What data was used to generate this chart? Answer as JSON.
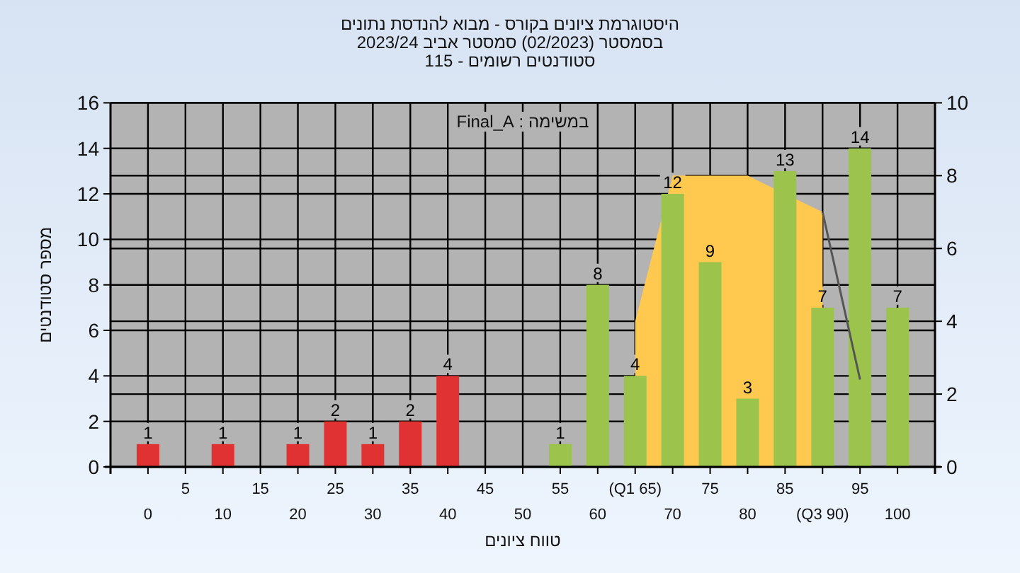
{
  "chart_data": {
    "type": "bar",
    "title": "היסטוגרמת ציונים בקורס - מבוא להנדסת נתונים",
    "subtitle": "בסמסטר  (02/2023)  סמסטר אביב 2023/24",
    "annotations": [
      "סטודנטים רשומים - 115",
      "במשימה : Final_A"
    ],
    "xlabel": "טווח ציונים",
    "ylabel": "מספר סטודנטים",
    "categories": [
      "0",
      "5",
      "10",
      "15",
      "20",
      "25",
      "30",
      "35",
      "40",
      "45",
      "50",
      "55",
      "60",
      "(Q1 65)",
      "70",
      "75",
      "80",
      "85",
      "(Q3 90)",
      "95",
      "100"
    ],
    "series": [
      {
        "type": "area",
        "axis": "y2",
        "color": "#ffc94f",
        "values": [
          null,
          null,
          null,
          null,
          null,
          null,
          null,
          null,
          null,
          null,
          null,
          null,
          null,
          4,
          8,
          8,
          8,
          null,
          7,
          null,
          null
        ]
      },
      {
        "colors": [
          "#e03232",
          "#e03232",
          "#e03232",
          "#e03232",
          "#e03232",
          "#e03232",
          "#e03232",
          "#e03232",
          "#e03232",
          "#e03232",
          "#e03232",
          "#9cc44c",
          "#9cc44c",
          "#9cc44c",
          "#9cc44c",
          "#9cc44c",
          "#9cc44c",
          "#9cc44c",
          "#9cc44c",
          "#9cc44c",
          "#9cc44c"
        ],
        "values": [
          1,
          0,
          1,
          0,
          1,
          2,
          1,
          2,
          4,
          0,
          0,
          1,
          8,
          4,
          12,
          9,
          3,
          13,
          7,
          14,
          7
        ],
        "value_labels": [
          "1",
          null,
          "1",
          null,
          "1",
          "2",
          "1",
          "2",
          "4",
          null,
          null,
          "1",
          "8",
          "4",
          "12",
          "9",
          "3",
          "13",
          "7",
          "14",
          "7"
        ]
      },
      {
        "type": "line",
        "axis": "y2",
        "color": "#555555",
        "values": [
          null,
          null,
          null,
          null,
          null,
          null,
          null,
          null,
          null,
          null,
          null,
          null,
          null,
          null,
          null,
          null,
          null,
          null,
          7,
          2.4,
          null
        ]
      }
    ],
    "ylim": [
      0,
      16
    ],
    "yticks": [
      0,
      2,
      4,
      6,
      8,
      10,
      12,
      14,
      16
    ],
    "y2lim": [
      0,
      10
    ],
    "y2ticks": [
      0,
      2,
      4,
      6,
      8,
      10
    ],
    "grid": true
  }
}
